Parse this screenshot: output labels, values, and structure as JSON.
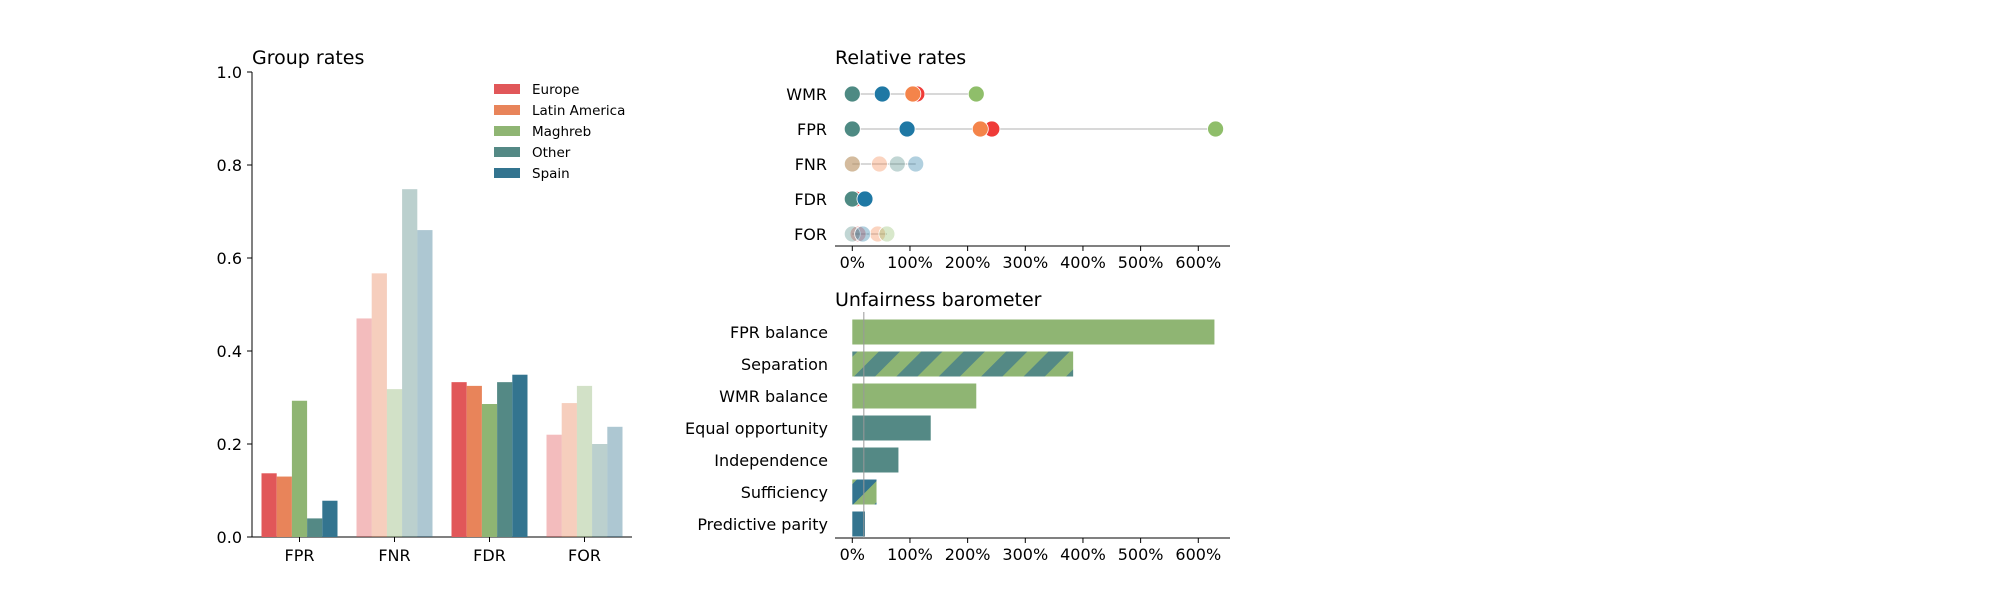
{
  "chart_data": [
    {
      "type": "bar",
      "title": "Group rates",
      "ylim": [
        0,
        1
      ],
      "yticks": [
        "0.0",
        "0.2",
        "0.4",
        "0.6",
        "0.8",
        "1.0"
      ],
      "categories": [
        "FPR",
        "FNR",
        "FDR",
        "FOR"
      ],
      "legend_position": "top-right",
      "highlight_categories": [
        "FPR",
        "FDR"
      ],
      "series": [
        {
          "name": "Europe",
          "color": "#e15759",
          "values": [
            0.137,
            0.47,
            0.333,
            0.22
          ]
        },
        {
          "name": "Latin America",
          "color": "#e8845a",
          "values": [
            0.13,
            0.567,
            0.325,
            0.288
          ]
        },
        {
          "name": "Maghreb",
          "color": "#8fb573",
          "values": [
            0.293,
            0.318,
            0.286,
            0.325
          ]
        },
        {
          "name": "Other",
          "color": "#548985",
          "values": [
            0.04,
            0.748,
            0.333,
            0.2
          ]
        },
        {
          "name": "Spain",
          "color": "#33748f",
          "values": [
            0.078,
            0.66,
            0.349,
            0.237
          ]
        }
      ]
    },
    {
      "type": "scatter",
      "title": "Relative rates",
      "categories": [
        "WMR",
        "FPR",
        "FNR",
        "FDR",
        "FOR"
      ],
      "xticks": [
        "0%",
        "100%",
        "200%",
        "300%",
        "400%",
        "500%",
        "600%"
      ],
      "xlim": [
        -0.3,
        6.55
      ],
      "highlight_categories": [
        "WMR",
        "FPR",
        "FDR"
      ],
      "series": [
        {
          "name": "Europe",
          "color": "#ef3b38",
          "values": [
            1.12,
            2.42,
            0.0,
            0.05,
            0.1
          ]
        },
        {
          "name": "Latin America",
          "color": "#f4844a",
          "values": [
            1.05,
            2.22,
            0.47,
            0.0,
            0.44
          ]
        },
        {
          "name": "Maghreb",
          "color": "#8fbe6a",
          "values": [
            2.15,
            6.3,
            0.0,
            0.0,
            0.6
          ]
        },
        {
          "name": "Other",
          "color": "#4e8a83",
          "values": [
            0.0,
            0.0,
            0.78,
            0.0,
            0.0
          ]
        },
        {
          "name": "Spain",
          "color": "#1f78a4",
          "values": [
            0.52,
            0.95,
            1.1,
            0.22,
            0.18
          ]
        }
      ]
    },
    {
      "type": "bar",
      "orientation": "horizontal",
      "title": "Unfairness barometer",
      "xticks": [
        "0%",
        "100%",
        "200%",
        "300%",
        "400%",
        "500%",
        "600%"
      ],
      "xlim": [
        -0.3,
        6.55
      ],
      "bars": [
        {
          "label": "FPR balance",
          "value": 6.28,
          "colors": [
            "#8fb573"
          ]
        },
        {
          "label": "Separation",
          "value": 3.83,
          "colors": [
            "#548985",
            "#8fb573"
          ]
        },
        {
          "label": "WMR balance",
          "value": 2.15,
          "colors": [
            "#8fb573"
          ]
        },
        {
          "label": "Equal opportunity",
          "value": 1.36,
          "colors": [
            "#548985"
          ]
        },
        {
          "label": "Independence",
          "value": 0.8,
          "colors": [
            "#548985"
          ]
        },
        {
          "label": "Sufficiency",
          "value": 0.42,
          "colors": [
            "#33748f",
            "#8fb573"
          ]
        },
        {
          "label": "Predictive parity",
          "value": 0.22,
          "colors": [
            "#33748f"
          ]
        }
      ]
    }
  ]
}
